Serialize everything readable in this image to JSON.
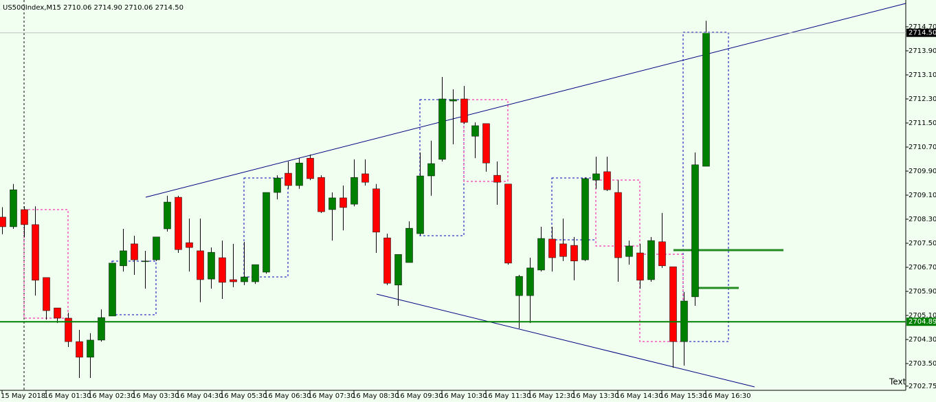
{
  "chart_data": {
    "type": "candlestick",
    "title": "US500Index,M15  2710.06 2714.90 2710.06 2714.50",
    "annotation": "Text",
    "x": [
      "15 May 2018",
      null,
      null,
      null,
      "16 May 01:30",
      null,
      null,
      null,
      "16 May 02:30",
      null,
      null,
      null,
      "16 May 03:30",
      null,
      null,
      null,
      "16 May 04:30",
      null,
      null,
      null,
      "16 May 05:30",
      null,
      null,
      null,
      "16 May 06:30",
      null,
      null,
      null,
      "16 May 07:30",
      null,
      null,
      null,
      "16 May 08:30",
      null,
      null,
      null,
      "16 May 09:30",
      null,
      null,
      null,
      "16 May 10:30",
      null,
      null,
      null,
      "16 May 11:30",
      null,
      null,
      null,
      "16 May 12:30",
      null,
      null,
      null,
      "16 May 13:30",
      null,
      null,
      null,
      "16 May 14:30",
      null,
      null,
      null,
      "16 May 15:30",
      null,
      null,
      null,
      "16 May 16:30"
    ],
    "open": [
      2708.37,
      2708.05,
      2708.62,
      2708.12,
      2706.36,
      2705.35,
      2705.01,
      2704.23,
      2703.71,
      2704.28,
      2705.08,
      2706.75,
      2707.48,
      2706.9,
      2706.95,
      2707.98,
      2709.03,
      2707.52,
      2707.25,
      2706.31,
      2707.02,
      2706.29,
      2706.22,
      2706.22,
      2706.54,
      2709.19,
      2709.83,
      2709.42,
      2710.33,
      2709.69,
      2708.62,
      2709.01,
      2708.8,
      2709.81,
      2709.31,
      2707.68,
      2706.11,
      2706.86,
      2707.82,
      2709.74,
      2710.29,
      2712.23,
      2712.3,
      2711.06,
      2711.48,
      2709.76,
      2709.47,
      2705.76,
      2705.76,
      2706.61,
      2707.64,
      2707.48,
      2707.43,
      2706.95,
      2709.6,
      2709.88,
      2709.19,
      2707.06,
      2707.18,
      2706.29,
      2707.55,
      2706.72,
      2704.23,
      2705.72,
      2710.06
    ],
    "high": [
      2708.7,
      2709.47,
      2708.73,
      2708.73,
      2706.36,
      2705.35,
      2705.19,
      2704.62,
      2704.51,
      2705.3,
      2706.84,
      2707.98,
      2707.75,
      2707.25,
      2707.71,
      2709.08,
      2709.08,
      2708.32,
      2708.32,
      2707.36,
      2707.59,
      2707.48,
      2707.55,
      2706.79,
      2709.19,
      2709.76,
      2710.22,
      2710.33,
      2710.45,
      2709.76,
      2709.19,
      2709.42,
      2710.29,
      2710.29,
      2709.47,
      2707.82,
      2707.13,
      2708.23,
      2710.52,
      2710.91,
      2713.03,
      2712.62,
      2712.73,
      2711.52,
      2711.48,
      2710.22,
      2709.47,
      2706.45,
      2707.02,
      2708.05,
      2708.05,
      2708.32,
      2707.71,
      2709.69,
      2710.38,
      2710.38,
      2709.6,
      2707.59,
      2707.48,
      2707.71,
      2708.51,
      2706.72,
      2705.88,
      2710.52,
      2714.9
    ],
    "low": [
      2707.8,
      2707.98,
      2707.7,
      2705.76,
      2704.96,
      2704.85,
      2704.05,
      2703.02,
      2703.02,
      2704.23,
      2705.08,
      2706.56,
      2706.45,
      2705.99,
      2706.91,
      2707.89,
      2707.18,
      2706.56,
      2705.54,
      2705.99,
      2705.65,
      2706.04,
      2706.11,
      2706.15,
      2706.49,
      2708.96,
      2709.31,
      2709.31,
      2709.6,
      2708.51,
      2707.59,
      2707.93,
      2708.73,
      2709.42,
      2707.18,
      2706.11,
      2705.42,
      2706.86,
      2707.77,
      2709.08,
      2710.22,
      2710.79,
      2711.47,
      2710.33,
      2709.88,
      2708.78,
      2706.79,
      2704.67,
      2704.85,
      2706.56,
      2706.56,
      2706.91,
      2706.27,
      2706.91,
      2709.31,
      2709.24,
      2706.22,
      2706.79,
      2705.99,
      2706.22,
      2706.68,
      2703.36,
      2703.43,
      2705.42,
      2710.06
    ],
    "close": [
      2708.05,
      2709.28,
      2708.12,
      2706.27,
      2705.26,
      2705.01,
      2704.23,
      2703.71,
      2704.28,
      2705.03,
      2706.84,
      2707.25,
      2706.95,
      2706.91,
      2707.71,
      2708.87,
      2707.29,
      2707.36,
      2706.29,
      2707.2,
      2706.2,
      2706.22,
      2706.38,
      2706.79,
      2709.19,
      2709.67,
      2709.42,
      2710.17,
      2709.65,
      2708.55,
      2709.01,
      2708.69,
      2709.69,
      2709.53,
      2707.87,
      2706.17,
      2707.13,
      2708.0,
      2709.74,
      2710.15,
      2712.3,
      2712.28,
      2711.52,
      2711.41,
      2710.17,
      2709.53,
      2706.84,
      2706.4,
      2706.68,
      2707.66,
      2707.02,
      2707.06,
      2706.91,
      2709.65,
      2709.81,
      2709.28,
      2707.02,
      2707.41,
      2706.27,
      2707.59,
      2706.75,
      2704.23,
      2705.58,
      2710.11,
      2714.5
    ],
    "up_color": "#008000",
    "down_color": "#ff0000",
    "wick_color": "#000000",
    "ylim": [
      2702.61,
      2715.59
    ],
    "yticks": [
      {
        "value": 2714.7,
        "label": "2714.70"
      },
      {
        "value": 2713.9,
        "label": "2713.90"
      },
      {
        "value": 2713.1,
        "label": "2713.10"
      },
      {
        "value": 2712.3,
        "label": "2712.30"
      },
      {
        "value": 2711.5,
        "label": "2711.50"
      },
      {
        "value": 2710.7,
        "label": "2710.70"
      },
      {
        "value": 2709.9,
        "label": "2709.90"
      },
      {
        "value": 2709.1,
        "label": "2709.10"
      },
      {
        "value": 2708.3,
        "label": "2708.30"
      },
      {
        "value": 2707.5,
        "label": "2707.50"
      },
      {
        "value": 2706.7,
        "label": "2706.70"
      },
      {
        "value": 2705.9,
        "label": "2705.90"
      },
      {
        "value": 2705.1,
        "label": "2705.10"
      },
      {
        "value": 2704.3,
        "label": "2704.30"
      },
      {
        "value": 2703.5,
        "label": "2703.50"
      },
      {
        "value": 2702.75,
        "label": "2702.75"
      }
    ],
    "price_lines": [
      {
        "value": 2714.5,
        "label": "2714.50",
        "color": "#c0c0c0",
        "label_color": "#000000"
      },
      {
        "value": 2704.89,
        "label": "2704.89",
        "color": "#008000",
        "label_color": "#008000"
      }
    ],
    "grid": false
  }
}
